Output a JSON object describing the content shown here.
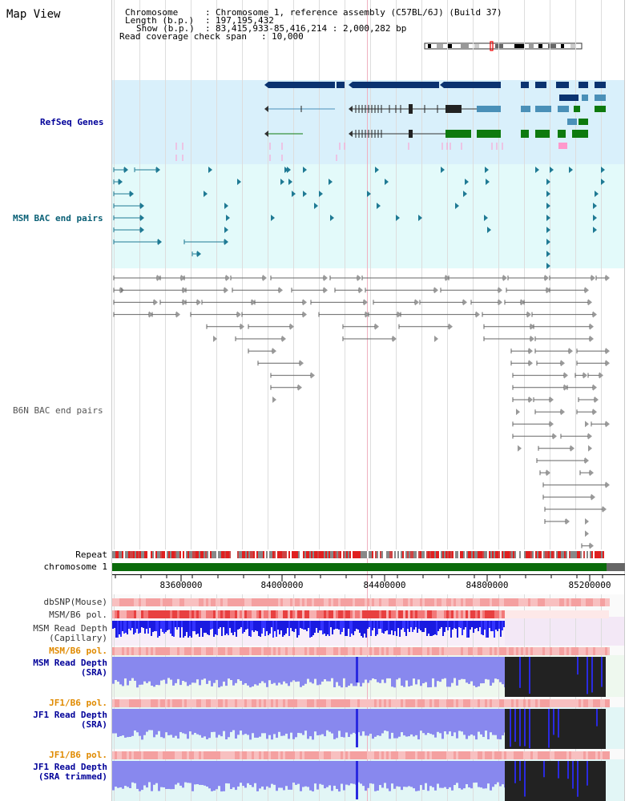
{
  "title": "Map View",
  "info": {
    "chromosome_label": "Chromosome",
    "chromosome_value": "Chromosome 1, reference assembly (C57BL/6J) (Build 37)",
    "length_label": "Length (b.p.)",
    "length_value": "197,195,432",
    "show_label": "Show (b.p.)",
    "show_value": "83,415,933-85,416,214 : 2,000,282 bp",
    "coverage_label": "Read coverage check span",
    "coverage_value": "10,000"
  },
  "tracks": {
    "refseq": "RefSeq Genes",
    "msm_bac": "MSM BAC end pairs",
    "b6n_bac": "B6N BAC end pairs",
    "repeat": "Repeat",
    "chromosome": "chromosome 1",
    "dbsnp": "dbSNP(Mouse)",
    "msm_b6_pol_1": "MSM/B6 pol.",
    "msm_depth_cap_1": "MSM Read Depth",
    "msm_depth_cap_2": "(Capillary)",
    "msm_b6_pol_2": "MSM/B6 pol.",
    "msm_depth_sra_1": "MSM Read Depth",
    "msm_depth_sra_2": "(SRA)",
    "jf1_b6_pol_1": "JF1/B6 pol.",
    "jf1_depth_sra_1": "JF1 Read Depth",
    "jf1_depth_sra_2": "(SRA)",
    "jf1_b6_pol_2": "JF1/B6 pol.",
    "jf1_depth_trim_1": "JF1 Read Depth",
    "jf1_depth_trim_2": "(SRA trimmed)"
  },
  "axis": {
    "ticks": [
      "83600000",
      "84000000",
      "84400000",
      "84800000",
      "85200000"
    ]
  },
  "colors": {
    "refseq_bg": "#d9f0fb",
    "msm_bg": "#e3fafa",
    "navy_gene": "#0b3370",
    "blue_gene": "#4a90b8",
    "green_gene": "#0e7a0e",
    "pink": "#ff99cc",
    "teal_pair": "#1f7a94",
    "grey_pair": "#666666",
    "chromosome_bar": "#0b6b0b",
    "depth_blue": "#2a2ae0",
    "depth_light": "#8888ee",
    "black_block": "#222222"
  }
}
